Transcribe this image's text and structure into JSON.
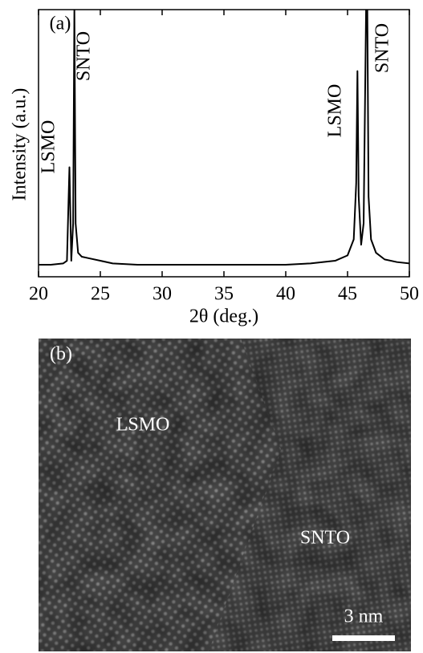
{
  "chart_data": {
    "type": "line",
    "panel_label": "(a)",
    "xlabel": "2θ (deg.)",
    "ylabel": "Intensity (a.u.)",
    "x": [
      20,
      21,
      22,
      22.3,
      22.5,
      22.65,
      22.8,
      22.9,
      23.0,
      23.2,
      23.5,
      24,
      25,
      26,
      28,
      30,
      35,
      40,
      42,
      44,
      45,
      45.5,
      45.7,
      45.8,
      45.9,
      46.1,
      46.3,
      46.5,
      46.6,
      46.7,
      46.9,
      47.3,
      48,
      49,
      50
    ],
    "values": [
      4.5,
      4.5,
      5,
      6,
      41,
      6,
      20,
      100,
      20,
      9,
      7.5,
      7,
      6,
      5,
      4.5,
      4.5,
      4.5,
      4.5,
      5,
      6,
      8,
      14,
      35,
      77,
      30,
      12,
      20,
      100,
      100,
      30,
      14,
      9,
      6.5,
      5.5,
      5
    ],
    "color": "#000000",
    "xlim": [
      20,
      50
    ],
    "xticks": [
      20,
      25,
      30,
      35,
      40,
      45,
      50
    ],
    "ylim": [
      0,
      100
    ],
    "annotations": [
      "LSMO",
      "SNTO",
      "LSMO",
      "SNTO"
    ]
  },
  "image": {
    "panel_label": "(b)",
    "annotations": [
      "LSMO",
      "SNTO"
    ],
    "scale_bar": "3 nm"
  }
}
